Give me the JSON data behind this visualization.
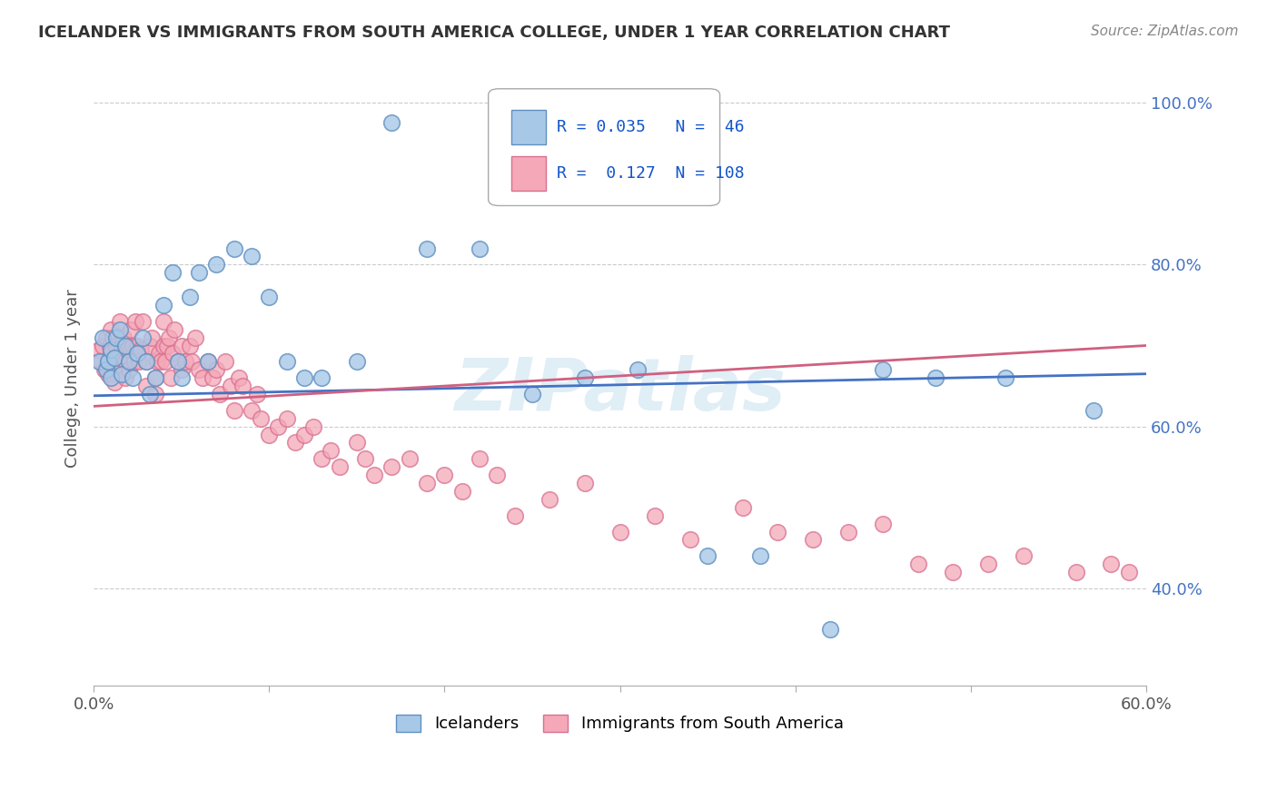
{
  "title": "ICELANDER VS IMMIGRANTS FROM SOUTH AMERICA COLLEGE, UNDER 1 YEAR CORRELATION CHART",
  "source": "Source: ZipAtlas.com",
  "ylabel": "College, Under 1 year",
  "x_min": 0.0,
  "x_max": 0.6,
  "y_min": 0.28,
  "y_max": 1.04,
  "r_blue": 0.035,
  "n_blue": 46,
  "r_pink": 0.127,
  "n_pink": 108,
  "blue_color": "#A8C8E8",
  "pink_color": "#F4A8B8",
  "blue_edge_color": "#6090C0",
  "pink_edge_color": "#D87090",
  "blue_line_color": "#4472C4",
  "pink_line_color": "#D06080",
  "legend_blue_label": "Icelanders",
  "legend_pink_label": "Immigrants from South America",
  "watermark": "ZIPatlas",
  "blue_x": [
    0.003,
    0.005,
    0.007,
    0.008,
    0.01,
    0.01,
    0.012,
    0.013,
    0.015,
    0.016,
    0.018,
    0.02,
    0.022,
    0.025,
    0.028,
    0.03,
    0.032,
    0.035,
    0.04,
    0.045,
    0.048,
    0.05,
    0.055,
    0.06,
    0.065,
    0.07,
    0.08,
    0.09,
    0.1,
    0.11,
    0.12,
    0.13,
    0.15,
    0.17,
    0.19,
    0.22,
    0.25,
    0.28,
    0.31,
    0.35,
    0.38,
    0.42,
    0.45,
    0.48,
    0.52,
    0.57
  ],
  "blue_y": [
    0.68,
    0.71,
    0.67,
    0.68,
    0.695,
    0.66,
    0.685,
    0.71,
    0.72,
    0.665,
    0.7,
    0.68,
    0.66,
    0.69,
    0.71,
    0.68,
    0.64,
    0.66,
    0.75,
    0.79,
    0.68,
    0.66,
    0.76,
    0.79,
    0.68,
    0.8,
    0.82,
    0.81,
    0.76,
    0.68,
    0.66,
    0.66,
    0.68,
    0.975,
    0.82,
    0.82,
    0.64,
    0.66,
    0.67,
    0.44,
    0.44,
    0.35,
    0.67,
    0.66,
    0.66,
    0.62
  ],
  "pink_x": [
    0.003,
    0.004,
    0.005,
    0.006,
    0.007,
    0.008,
    0.008,
    0.009,
    0.01,
    0.01,
    0.01,
    0.011,
    0.012,
    0.012,
    0.013,
    0.014,
    0.015,
    0.015,
    0.016,
    0.017,
    0.018,
    0.018,
    0.019,
    0.02,
    0.02,
    0.021,
    0.022,
    0.023,
    0.024,
    0.025,
    0.026,
    0.027,
    0.028,
    0.03,
    0.03,
    0.032,
    0.033,
    0.035,
    0.035,
    0.036,
    0.037,
    0.038,
    0.04,
    0.04,
    0.041,
    0.042,
    0.043,
    0.044,
    0.045,
    0.046,
    0.048,
    0.05,
    0.05,
    0.052,
    0.055,
    0.056,
    0.058,
    0.06,
    0.062,
    0.065,
    0.068,
    0.07,
    0.072,
    0.075,
    0.078,
    0.08,
    0.083,
    0.085,
    0.09,
    0.093,
    0.095,
    0.1,
    0.105,
    0.11,
    0.115,
    0.12,
    0.125,
    0.13,
    0.135,
    0.14,
    0.15,
    0.155,
    0.16,
    0.17,
    0.18,
    0.19,
    0.2,
    0.21,
    0.22,
    0.23,
    0.24,
    0.26,
    0.28,
    0.3,
    0.32,
    0.34,
    0.37,
    0.39,
    0.41,
    0.43,
    0.45,
    0.47,
    0.49,
    0.51,
    0.53,
    0.56,
    0.58,
    0.59
  ],
  "pink_y": [
    0.695,
    0.68,
    0.7,
    0.67,
    0.71,
    0.68,
    0.665,
    0.7,
    0.72,
    0.69,
    0.665,
    0.71,
    0.68,
    0.655,
    0.7,
    0.685,
    0.73,
    0.67,
    0.7,
    0.71,
    0.68,
    0.66,
    0.695,
    0.7,
    0.67,
    0.72,
    0.7,
    0.68,
    0.73,
    0.7,
    0.68,
    0.695,
    0.73,
    0.68,
    0.65,
    0.7,
    0.71,
    0.66,
    0.64,
    0.68,
    0.69,
    0.68,
    0.73,
    0.7,
    0.68,
    0.7,
    0.71,
    0.66,
    0.69,
    0.72,
    0.68,
    0.7,
    0.67,
    0.68,
    0.7,
    0.68,
    0.71,
    0.67,
    0.66,
    0.68,
    0.66,
    0.67,
    0.64,
    0.68,
    0.65,
    0.62,
    0.66,
    0.65,
    0.62,
    0.64,
    0.61,
    0.59,
    0.6,
    0.61,
    0.58,
    0.59,
    0.6,
    0.56,
    0.57,
    0.55,
    0.58,
    0.56,
    0.54,
    0.55,
    0.56,
    0.53,
    0.54,
    0.52,
    0.56,
    0.54,
    0.49,
    0.51,
    0.53,
    0.47,
    0.49,
    0.46,
    0.5,
    0.47,
    0.46,
    0.47,
    0.48,
    0.43,
    0.42,
    0.43,
    0.44,
    0.42,
    0.43,
    0.42
  ]
}
